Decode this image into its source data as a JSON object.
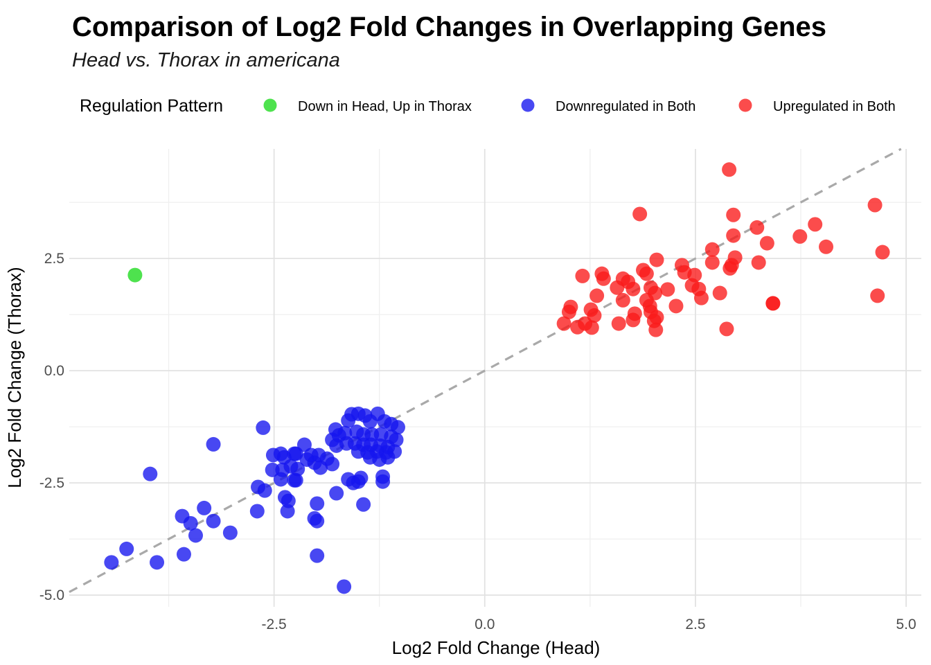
{
  "header": {
    "title": "Comparison of Log2 Fold Changes in Overlapping Genes",
    "subtitle": "Head vs. Thorax in americana"
  },
  "legend": {
    "title": "Regulation Pattern",
    "items": [
      {
        "label": "Down in Head, Up in Thorax",
        "color": "#2fdd2f",
        "alpha": 0.85
      },
      {
        "label": "Downregulated in Both",
        "color": "#1414ee",
        "alpha": 0.78
      },
      {
        "label": "Upregulated in Both",
        "color": "#fa1919",
        "alpha": 0.78
      }
    ]
  },
  "chart_data": {
    "type": "scatter",
    "title": "Comparison of Log2 Fold Changes in Overlapping Genes",
    "subtitle": "Head vs. Thorax in americana",
    "xlabel": "Log2 Fold Change (Head)",
    "ylabel": "Log2 Fold Change (Thorax)",
    "xlim": [
      -4.93,
      5.18
    ],
    "ylim": [
      -5.26,
      4.94
    ],
    "x_ticks": [
      -2.5,
      0.0,
      2.5,
      5.0
    ],
    "x_tick_labels": [
      "-2.5",
      "0.0",
      "2.5",
      "5.0"
    ],
    "y_ticks": [
      -5.0,
      -2.5,
      0.0,
      2.5
    ],
    "y_tick_labels": [
      "-5.0",
      "-2.5",
      "0.0",
      "2.5"
    ],
    "x_minor_ticks": [
      -3.75,
      -1.25,
      1.25,
      3.75
    ],
    "y_minor_ticks": [
      -3.75,
      -1.25,
      1.25,
      3.75
    ],
    "grid": true,
    "legend_position": "top",
    "point_radius": 10.5,
    "grid_major_color": "#e2e2e2",
    "grid_minor_color": "#efefef",
    "reference_line": {
      "type": "identity y=x",
      "style": "dashed",
      "color": "#a9a9a9",
      "width": 3.2
    },
    "series": [
      {
        "name": "Down in Head, Up in Thorax",
        "color": "#2fdd2f",
        "alpha": 0.85,
        "points": [
          [
            -4.15,
            2.13
          ]
        ]
      },
      {
        "name": "Downregulated in Both",
        "color": "#1414ee",
        "alpha": 0.78,
        "points": [
          [
            -4.43,
            -4.27
          ],
          [
            -4.25,
            -3.97
          ],
          [
            -3.89,
            -4.27
          ],
          [
            -3.57,
            -4.09
          ],
          [
            -3.97,
            -2.3
          ],
          [
            -3.43,
            -3.67
          ],
          [
            -3.02,
            -3.61
          ],
          [
            -3.59,
            -3.24
          ],
          [
            -3.49,
            -3.4
          ],
          [
            -3.22,
            -3.35
          ],
          [
            -3.33,
            -3.06
          ],
          [
            -3.22,
            -1.64
          ],
          [
            -2.63,
            -1.27
          ],
          [
            -2.69,
            -2.59
          ],
          [
            -2.61,
            -2.67
          ],
          [
            -2.7,
            -3.13
          ],
          [
            -2.37,
            -2.82
          ],
          [
            -2.33,
            -2.9
          ],
          [
            -2.34,
            -3.13
          ],
          [
            -2.51,
            -1.88
          ],
          [
            -2.42,
            -1.85
          ],
          [
            -2.38,
            -1.93
          ],
          [
            -2.26,
            -1.85
          ],
          [
            -2.52,
            -2.21
          ],
          [
            -2.4,
            -2.21
          ],
          [
            -2.3,
            -2.13
          ],
          [
            -2.42,
            -2.42
          ],
          [
            -2.26,
            -2.44
          ],
          [
            -2.14,
            -1.65
          ],
          [
            -2.24,
            -1.85
          ],
          [
            -2.06,
            -1.88
          ],
          [
            -1.97,
            -1.88
          ],
          [
            -1.87,
            -1.96
          ],
          [
            -2.11,
            -1.98
          ],
          [
            -2.02,
            -2.05
          ],
          [
            -1.95,
            -2.16
          ],
          [
            -2.22,
            -2.19
          ],
          [
            -1.81,
            -2.08
          ],
          [
            -2.24,
            -2.44
          ],
          [
            -1.99,
            -2.96
          ],
          [
            -2.02,
            -3.29
          ],
          [
            -1.99,
            -3.35
          ],
          [
            -1.99,
            -4.12
          ],
          [
            -1.67,
            -4.81
          ],
          [
            -1.76,
            -2.73
          ],
          [
            -1.56,
            -2.5
          ],
          [
            -1.5,
            -2.47
          ],
          [
            -1.21,
            -2.47
          ],
          [
            -1.44,
            -2.98
          ],
          [
            -1.47,
            -2.39
          ],
          [
            -1.62,
            -2.42
          ],
          [
            -1.58,
            -0.97
          ],
          [
            -1.5,
            -0.96
          ],
          [
            -1.42,
            -1.0
          ],
          [
            -1.27,
            -0.96
          ],
          [
            -1.62,
            -1.11
          ],
          [
            -1.36,
            -1.13
          ],
          [
            -1.19,
            -1.13
          ],
          [
            -1.11,
            -1.19
          ],
          [
            -1.03,
            -1.26
          ],
          [
            -1.77,
            -1.31
          ],
          [
            -1.73,
            -1.44
          ],
          [
            -1.66,
            -1.39
          ],
          [
            -1.52,
            -1.36
          ],
          [
            -1.44,
            -1.42
          ],
          [
            -1.34,
            -1.42
          ],
          [
            -1.23,
            -1.42
          ],
          [
            -1.11,
            -1.47
          ],
          [
            -1.05,
            -1.54
          ],
          [
            -1.81,
            -1.54
          ],
          [
            -1.76,
            -1.67
          ],
          [
            -1.64,
            -1.62
          ],
          [
            -1.54,
            -1.62
          ],
          [
            -1.44,
            -1.65
          ],
          [
            -1.35,
            -1.65
          ],
          [
            -1.24,
            -1.67
          ],
          [
            -1.15,
            -1.7
          ],
          [
            -1.5,
            -1.8
          ],
          [
            -1.39,
            -1.82
          ],
          [
            -1.28,
            -1.8
          ],
          [
            -1.17,
            -1.82
          ],
          [
            -1.07,
            -1.8
          ],
          [
            -1.15,
            -1.93
          ],
          [
            -1.36,
            -1.93
          ],
          [
            -1.25,
            -1.98
          ],
          [
            -1.21,
            -2.36
          ]
        ]
      },
      {
        "name": "Upregulated in Both",
        "color": "#fa1919",
        "alpha": 0.78,
        "points": [
          [
            2.9,
            4.48
          ],
          [
            1.84,
            3.49
          ],
          [
            2.95,
            3.47
          ],
          [
            2.95,
            3.01
          ],
          [
            3.23,
            3.19
          ],
          [
            3.35,
            2.84
          ],
          [
            3.92,
            3.26
          ],
          [
            3.74,
            2.99
          ],
          [
            4.05,
            2.76
          ],
          [
            4.63,
            3.69
          ],
          [
            4.72,
            2.64
          ],
          [
            4.66,
            1.67
          ],
          [
            3.42,
            1.5
          ],
          [
            2.7,
            2.7
          ],
          [
            2.7,
            2.41
          ],
          [
            2.04,
            2.47
          ],
          [
            2.97,
            2.52
          ],
          [
            2.93,
            2.35
          ],
          [
            3.25,
            2.41
          ],
          [
            2.91,
            2.28
          ],
          [
            2.34,
            2.35
          ],
          [
            2.37,
            2.19
          ],
          [
            1.16,
            2.11
          ],
          [
            1.39,
            2.16
          ],
          [
            1.41,
            2.05
          ],
          [
            1.64,
            2.05
          ],
          [
            1.7,
            1.98
          ],
          [
            1.88,
            2.24
          ],
          [
            1.92,
            2.16
          ],
          [
            1.76,
            1.82
          ],
          [
            1.57,
            1.85
          ],
          [
            1.97,
            1.85
          ],
          [
            2.02,
            1.73
          ],
          [
            2.17,
            1.81
          ],
          [
            2.49,
            2.13
          ],
          [
            2.46,
            1.9
          ],
          [
            2.54,
            1.82
          ],
          [
            2.57,
            1.62
          ],
          [
            2.79,
            1.73
          ],
          [
            1.33,
            1.67
          ],
          [
            1.64,
            1.57
          ],
          [
            1.02,
            1.42
          ],
          [
            1.0,
            1.31
          ],
          [
            1.26,
            1.36
          ],
          [
            1.3,
            1.23
          ],
          [
            1.19,
            1.05
          ],
          [
            0.94,
            1.05
          ],
          [
            1.1,
            0.97
          ],
          [
            1.27,
            0.96
          ],
          [
            1.59,
            1.05
          ],
          [
            1.78,
            1.27
          ],
          [
            1.76,
            1.13
          ],
          [
            1.92,
            1.57
          ],
          [
            1.96,
            1.44
          ],
          [
            1.97,
            1.31
          ],
          [
            2.04,
            1.19
          ],
          [
            2.27,
            1.44
          ],
          [
            2.01,
            1.11
          ],
          [
            2.03,
            0.91
          ],
          [
            2.87,
            0.93
          ],
          [
            3.42,
            1.5
          ]
        ]
      }
    ]
  }
}
